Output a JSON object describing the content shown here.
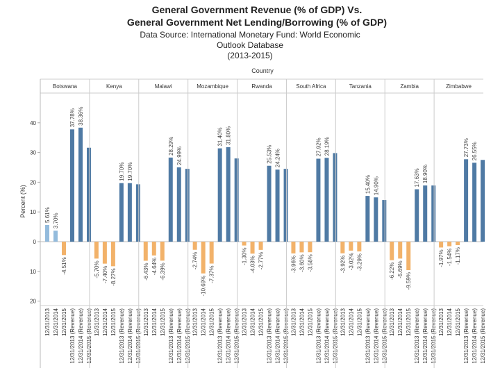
{
  "chart_data": {
    "type": "bar",
    "title": [
      "General Government Revenue (% of GDP) Vs.",
      "General Government Net Lending/Borrowing (% of GDP)"
    ],
    "subtitle": [
      "Data Source: International Monetary Fund: World Economic",
      "Outlook Database",
      "(2013-2015)"
    ],
    "column_header": "Country",
    "y_label": "Percent (%)",
    "categories": [
      "12/31/2013",
      "12/31/2014",
      "12/31/2015",
      "12/31/2013 (Revenue)",
      "12/31/2014 (Revenue)",
      "12/31/2015 (Revenue)"
    ],
    "ylim": [
      -21.5,
      50
    ],
    "yticks": [
      40,
      30,
      20,
      10,
      0,
      {
        "value": -10,
        "label": "10"
      },
      {
        "value": -20,
        "label": "20"
      }
    ],
    "lending_color": "#93bbdc",
    "lending_negative_color": "#f2b26a",
    "revenue_color": "#4f7aa4",
    "panels": [
      {
        "name": "Botswana",
        "values": [
          5.61,
          3.7,
          -4.51,
          37.78,
          38.36,
          31.6
        ],
        "value_labels": [
          "5.61%",
          "3.70%",
          "-4.51%",
          "37.78%",
          "38.36%",
          null
        ]
      },
      {
        "name": "Kenya",
        "values": [
          -5.7,
          -7.4,
          -8.27,
          19.7,
          19.7,
          19.3
        ],
        "value_labels": [
          "-5.70%",
          "-7.40%",
          "-8.27%",
          "19.70%",
          "19.70%",
          null
        ]
      },
      {
        "name": "Malawi",
        "values": [
          -6.43,
          -4.64,
          -6.39,
          28.29,
          24.99,
          24.5
        ],
        "value_labels": [
          "-6.43%",
          "-4.64%",
          "-6.39%",
          "28.29%",
          "24.99%",
          null
        ]
      },
      {
        "name": "Mozambique",
        "values": [
          -2.74,
          -10.69,
          -7.37,
          31.4,
          31.8,
          28.0
        ],
        "value_labels": [
          "-2.74%",
          "-10.69%",
          "-7.37%",
          "31.40%",
          "31.80%",
          null
        ]
      },
      {
        "name": "Rwanda",
        "values": [
          -1.3,
          -4.03,
          -2.77,
          25.53,
          24.24,
          24.5
        ],
        "value_labels": [
          "-1.30%",
          "-4.03%",
          "-2.77%",
          "25.53%",
          "24.24%",
          null
        ]
      },
      {
        "name": "South Africa",
        "values": [
          -3.96,
          -3.6,
          -3.56,
          27.92,
          28.19,
          29.8
        ],
        "value_labels": [
          "-3.96%",
          "-3.60%",
          "-3.56%",
          "27.92%",
          "28.19%",
          null
        ]
      },
      {
        "name": "Tanzania",
        "values": [
          -3.92,
          -3.02,
          -3.29,
          15.4,
          14.9,
          14.0
        ],
        "value_labels": [
          "-3.92%",
          "-3.02%",
          "-3.29%",
          "15.40%",
          "14.90%",
          null
        ]
      },
      {
        "name": "Zambia",
        "values": [
          -6.22,
          -5.69,
          -9.59,
          17.63,
          18.9,
          18.9
        ],
        "value_labels": [
          "-6.22%",
          "-5.69%",
          "-9.59%",
          "17.63%",
          "18.90%",
          null
        ]
      },
      {
        "name": "Zimbabwe",
        "values": [
          -1.97,
          -1.54,
          -1.17,
          27.73,
          26.55,
          27.5
        ],
        "value_labels": [
          "-1.97%",
          "-1.54%",
          "-1.17%",
          "27.73%",
          "26.55%",
          null
        ]
      }
    ]
  }
}
